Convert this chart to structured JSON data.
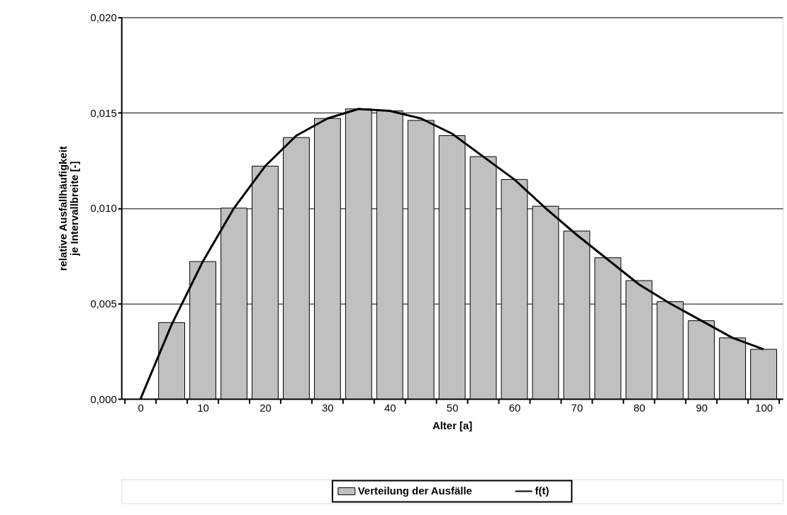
{
  "chart_data": {
    "type": "bar",
    "xlabel": "Alter [a]",
    "ylabel": "relative Ausfallhäufigkeit\nje Intervallbreite [-]",
    "x": [
      5,
      10,
      15,
      20,
      25,
      30,
      35,
      40,
      45,
      50,
      55,
      60,
      65,
      70,
      75,
      80,
      85,
      90,
      95,
      100
    ],
    "series": [
      {
        "name": "Verteilung der Ausfälle",
        "color": "#c0c0c0",
        "values": [
          0.004,
          0.0072,
          0.01,
          0.0122,
          0.0137,
          0.0147,
          0.0152,
          0.0151,
          0.0146,
          0.0138,
          0.0127,
          0.0115,
          0.0101,
          0.0088,
          0.0074,
          0.0062,
          0.0051,
          0.0041,
          0.0032,
          0.0026
        ]
      },
      {
        "name": "f(t)",
        "type": "line",
        "color": "#000000",
        "x": [
          0,
          5,
          10,
          15,
          20,
          25,
          30,
          35,
          40,
          45,
          50,
          55,
          60,
          65,
          70,
          75,
          80,
          85,
          90,
          95,
          100
        ],
        "values": [
          0,
          0.0039,
          0.0072,
          0.01,
          0.0122,
          0.0138,
          0.0147,
          0.0152,
          0.0151,
          0.0147,
          0.0139,
          0.0127,
          0.0115,
          0.01,
          0.0086,
          0.0073,
          0.006,
          0.005,
          0.0041,
          0.0032,
          0.0026
        ]
      }
    ],
    "xlim": [
      -2.5,
      102.5
    ],
    "xticks": [
      {
        "value": -2.5,
        "label": null
      },
      0,
      {
        "value": 2.5,
        "label": null
      },
      {
        "value": 7.5,
        "label": null
      },
      10,
      {
        "value": 12.5,
        "label": null
      },
      {
        "value": 17.5,
        "label": null
      },
      20,
      {
        "value": 22.5,
        "label": null
      },
      {
        "value": 27.5,
        "label": null
      },
      30,
      {
        "value": 32.5,
        "label": null
      },
      {
        "value": 37.5,
        "label": null
      },
      40,
      {
        "value": 42.5,
        "label": null
      },
      {
        "value": 47.5,
        "label": null
      },
      50,
      {
        "value": 52.5,
        "label": null
      },
      {
        "value": 57.5,
        "label": null
      },
      60,
      {
        "value": 62.5,
        "label": null
      },
      {
        "value": 67.5,
        "label": null
      },
      70,
      {
        "value": 72.5,
        "label": null
      },
      {
        "value": 77.5,
        "label": null
      },
      80,
      {
        "value": 82.5,
        "label": null
      },
      {
        "value": 87.5,
        "label": null
      },
      90,
      {
        "value": 92.5,
        "label": null
      },
      {
        "value": 97.5,
        "label": null
      },
      100,
      {
        "value": 102.5,
        "label": null
      }
    ],
    "ylim": [
      0,
      0.02
    ],
    "yticks": [
      {
        "value": 0,
        "label": "0,000"
      },
      {
        "value": 0.005,
        "label": "0,005"
      },
      {
        "value": 0.01,
        "label": "0,010"
      },
      {
        "value": 0.015,
        "label": "0,015"
      },
      {
        "value": 0.02,
        "label": "0,020"
      }
    ],
    "grid": "y",
    "legend": "bottom"
  }
}
